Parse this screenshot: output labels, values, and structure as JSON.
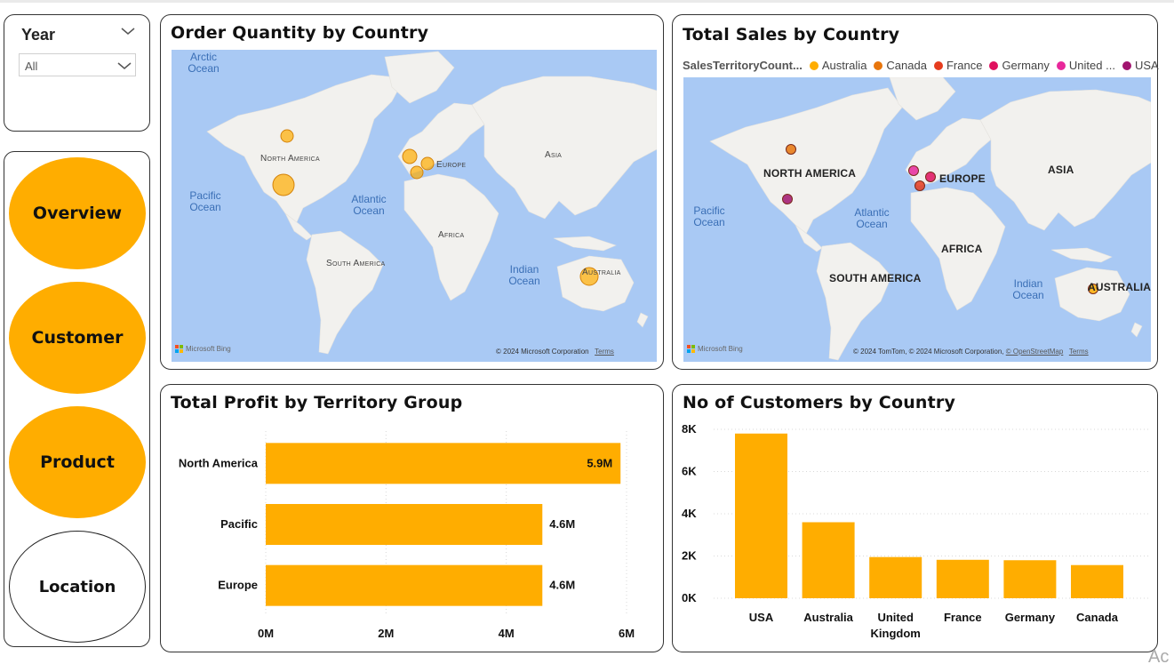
{
  "slicer": {
    "title": "Year",
    "selected": "All"
  },
  "nav": {
    "overview": "Overview",
    "customer": "Customer",
    "product": "Product",
    "location": "Location"
  },
  "map1": {
    "title": "Order Quantity by Country",
    "oceans": {
      "arctic": "Arctic Ocean",
      "pacific": "Pacific Ocean",
      "atlantic": "Atlantic Ocean",
      "indian": "Indian Ocean"
    },
    "continents": {
      "north_america": "North America",
      "europe": "Europe",
      "asia": "Asia",
      "africa": "Africa",
      "south_america": "South America",
      "australia": "Australia"
    },
    "bing": "Microsoft Bing",
    "credit": "© 2024 Microsoft Corporation",
    "terms": "Terms"
  },
  "map2": {
    "title": "Total Sales by Country",
    "legend_title": "SalesTerritoryCount...",
    "legend": [
      {
        "label": "Australia",
        "color": "#ffad00"
      },
      {
        "label": "Canada",
        "color": "#e8760c"
      },
      {
        "label": "France",
        "color": "#e63c1e"
      },
      {
        "label": "Germany",
        "color": "#e0115f"
      },
      {
        "label": "United ...",
        "color": "#e8289b"
      },
      {
        "label": "USA",
        "color": "#a1146f"
      }
    ],
    "oceans": {
      "pacific": "Pacific Ocean",
      "atlantic": "Atlantic Ocean",
      "indian": "Indian Ocean"
    },
    "continents": {
      "north_america": "NORTH AMERICA",
      "europe": "EUROPE",
      "asia": "ASIA",
      "africa": "AFRICA",
      "south_america": "SOUTH AMERICA",
      "australia": "AUSTRALIA"
    },
    "bing": "Microsoft Bing",
    "credit": "© 2024 TomTom, © 2024 Microsoft Corporation,",
    "osm": "© OpenStreetMap",
    "terms": "Terms"
  },
  "profit_chart": {
    "title": "Total Profit by Territory Group"
  },
  "customers_chart": {
    "title": "No of Customers by Country"
  },
  "chart_data": [
    {
      "type": "bar",
      "orientation": "horizontal",
      "title": "Total Profit by Territory Group",
      "categories": [
        "North America",
        "Pacific",
        "Europe"
      ],
      "values": [
        5.9,
        4.6,
        4.6
      ],
      "data_labels": [
        "5.9M",
        "4.6M",
        "4.6M"
      ],
      "x_ticks": [
        "0M",
        "2M",
        "4M",
        "6M"
      ],
      "xlim": [
        0,
        6
      ],
      "color": "#ffad00",
      "grid": true
    },
    {
      "type": "bar",
      "title": "No of Customers by Country",
      "categories": [
        "USA",
        "Australia",
        "United Kingdom",
        "France",
        "Germany",
        "Canada"
      ],
      "values": [
        7800,
        3600,
        1950,
        1820,
        1800,
        1570
      ],
      "y_ticks": [
        "0K",
        "2K",
        "4K",
        "6K",
        "8K"
      ],
      "ylim": [
        0,
        8000
      ],
      "color": "#ffad00",
      "grid": true
    }
  ]
}
